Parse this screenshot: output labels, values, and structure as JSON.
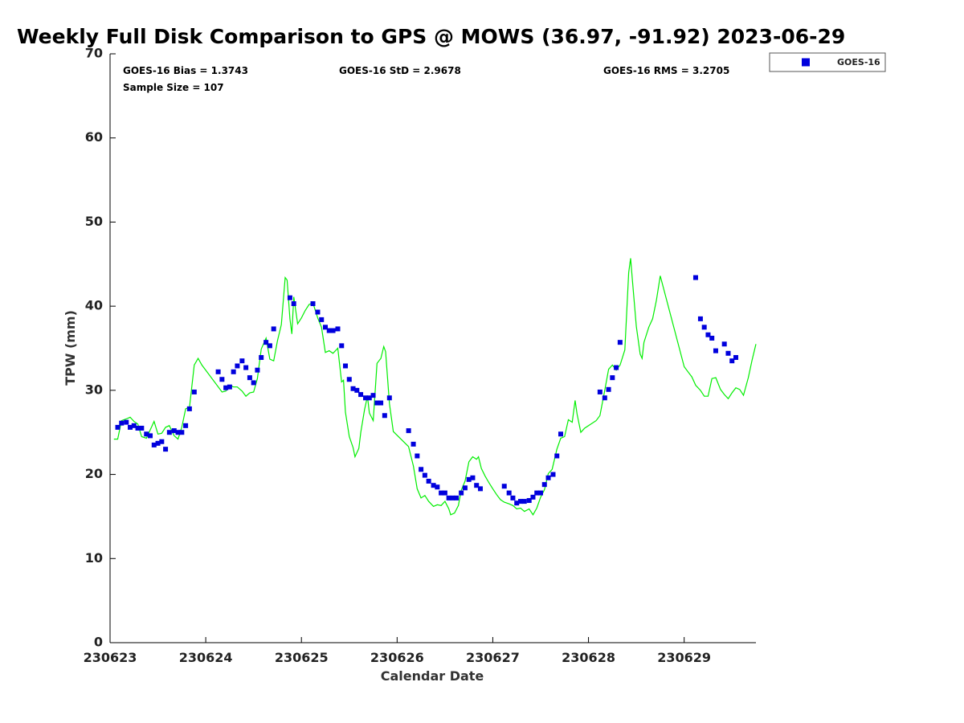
{
  "chart_data": {
    "type": "scatter",
    "title": "Weekly Full Disk Comparison to GPS @ MOWS (36.97, -91.92) 2023-06-29",
    "xlabel": "Calendar Date",
    "ylabel": "TPW (mm)",
    "xlim": [
      0,
      6.75
    ],
    "ylim": [
      0,
      70
    ],
    "y_ticks": [
      0,
      10,
      20,
      30,
      40,
      50,
      60,
      70
    ],
    "x_ticks": [
      {
        "value": 0,
        "label": "230623"
      },
      {
        "value": 1,
        "label": "230624"
      },
      {
        "value": 2,
        "label": "230625"
      },
      {
        "value": 3,
        "label": "230626"
      },
      {
        "value": 4,
        "label": "230627"
      },
      {
        "value": 5,
        "label": "230628"
      },
      {
        "value": 6,
        "label": "230629"
      }
    ],
    "legend": {
      "position": "top-right outside",
      "entries": [
        {
          "label": "GOES-16",
          "color": "#0000dd",
          "marker": "square"
        }
      ]
    },
    "stats": {
      "bias": "GOES-16 Bias = 1.3743",
      "std": "GOES-16 StD = 2.9678",
      "rms": "GOES-16 RMS = 3.2705",
      "sample": "Sample Size = 107"
    },
    "series": [
      {
        "name": "GOES-16",
        "kind": "scatter",
        "color": "#0000dd",
        "points": [
          [
            0.08,
            25.6
          ],
          [
            0.12,
            26.1
          ],
          [
            0.17,
            26.2
          ],
          [
            0.21,
            25.6
          ],
          [
            0.25,
            25.8
          ],
          [
            0.29,
            25.5
          ],
          [
            0.33,
            25.5
          ],
          [
            0.38,
            24.8
          ],
          [
            0.42,
            24.6
          ],
          [
            0.46,
            23.5
          ],
          [
            0.5,
            23.7
          ],
          [
            0.54,
            23.9
          ],
          [
            0.58,
            23.0
          ],
          [
            0.62,
            25.0
          ],
          [
            0.67,
            25.2
          ],
          [
            0.71,
            25.0
          ],
          [
            0.75,
            25.0
          ],
          [
            0.79,
            25.8
          ],
          [
            0.83,
            27.8
          ],
          [
            0.88,
            29.8
          ],
          [
            1.13,
            32.2
          ],
          [
            1.17,
            31.3
          ],
          [
            1.21,
            30.3
          ],
          [
            1.25,
            30.4
          ],
          [
            1.29,
            32.2
          ],
          [
            1.33,
            32.9
          ],
          [
            1.38,
            33.5
          ],
          [
            1.42,
            32.7
          ],
          [
            1.46,
            31.5
          ],
          [
            1.5,
            30.9
          ],
          [
            1.54,
            32.4
          ],
          [
            1.58,
            33.9
          ],
          [
            1.63,
            35.7
          ],
          [
            1.67,
            35.3
          ],
          [
            1.71,
            37.3
          ],
          [
            1.88,
            41.0
          ],
          [
            1.92,
            40.3
          ],
          [
            2.12,
            40.3
          ],
          [
            2.17,
            39.3
          ],
          [
            2.21,
            38.4
          ],
          [
            2.25,
            37.5
          ],
          [
            2.29,
            37.1
          ],
          [
            2.33,
            37.1
          ],
          [
            2.38,
            37.3
          ],
          [
            2.42,
            35.3
          ],
          [
            2.46,
            32.9
          ],
          [
            2.5,
            31.3
          ],
          [
            2.54,
            30.2
          ],
          [
            2.58,
            30.0
          ],
          [
            2.62,
            29.5
          ],
          [
            2.67,
            29.1
          ],
          [
            2.71,
            29.1
          ],
          [
            2.75,
            29.4
          ],
          [
            2.79,
            28.5
          ],
          [
            2.83,
            28.5
          ],
          [
            2.87,
            27.0
          ],
          [
            2.92,
            29.1
          ],
          [
            3.12,
            25.2
          ],
          [
            3.17,
            23.6
          ],
          [
            3.21,
            22.2
          ],
          [
            3.25,
            20.6
          ],
          [
            3.29,
            19.9
          ],
          [
            3.33,
            19.2
          ],
          [
            3.38,
            18.7
          ],
          [
            3.42,
            18.5
          ],
          [
            3.46,
            17.8
          ],
          [
            3.5,
            17.8
          ],
          [
            3.54,
            17.2
          ],
          [
            3.58,
            17.2
          ],
          [
            3.62,
            17.2
          ],
          [
            3.67,
            17.8
          ],
          [
            3.71,
            18.4
          ],
          [
            3.75,
            19.4
          ],
          [
            3.79,
            19.6
          ],
          [
            3.83,
            18.7
          ],
          [
            3.87,
            18.3
          ],
          [
            4.12,
            18.6
          ],
          [
            4.17,
            17.8
          ],
          [
            4.21,
            17.2
          ],
          [
            4.25,
            16.6
          ],
          [
            4.29,
            16.8
          ],
          [
            4.33,
            16.8
          ],
          [
            4.38,
            16.9
          ],
          [
            4.42,
            17.3
          ],
          [
            4.46,
            17.8
          ],
          [
            4.5,
            17.8
          ],
          [
            4.54,
            18.8
          ],
          [
            4.58,
            19.6
          ],
          [
            4.63,
            20.0
          ],
          [
            4.67,
            22.2
          ],
          [
            4.71,
            24.8
          ],
          [
            5.12,
            29.8
          ],
          [
            5.17,
            29.1
          ],
          [
            5.21,
            30.1
          ],
          [
            5.25,
            31.5
          ],
          [
            5.29,
            32.7
          ],
          [
            5.33,
            35.7
          ],
          [
            6.12,
            43.4
          ],
          [
            6.17,
            38.5
          ],
          [
            6.21,
            37.5
          ],
          [
            6.25,
            36.6
          ],
          [
            6.29,
            36.2
          ],
          [
            6.33,
            34.7
          ],
          [
            6.42,
            35.5
          ],
          [
            6.46,
            34.4
          ],
          [
            6.5,
            33.5
          ],
          [
            6.54,
            33.9
          ]
        ]
      },
      {
        "name": "GPS",
        "kind": "line",
        "color": "#00ee00",
        "points": [
          [
            0.04,
            24.2
          ],
          [
            0.08,
            24.2
          ],
          [
            0.12,
            26.4
          ],
          [
            0.17,
            26.6
          ],
          [
            0.21,
            26.8
          ],
          [
            0.25,
            26.3
          ],
          [
            0.29,
            26.0
          ],
          [
            0.33,
            24.5
          ],
          [
            0.38,
            24.3
          ],
          [
            0.42,
            25.3
          ],
          [
            0.46,
            26.3
          ],
          [
            0.5,
            24.8
          ],
          [
            0.54,
            24.9
          ],
          [
            0.58,
            25.6
          ],
          [
            0.62,
            25.8
          ],
          [
            0.67,
            24.6
          ],
          [
            0.71,
            24.2
          ],
          [
            0.75,
            25.6
          ],
          [
            0.79,
            27.8
          ],
          [
            0.83,
            28.0
          ],
          [
            0.88,
            33.0
          ],
          [
            0.92,
            33.8
          ],
          [
            0.96,
            33.0
          ],
          [
            1.17,
            29.8
          ],
          [
            1.21,
            29.9
          ],
          [
            1.25,
            30.6
          ],
          [
            1.29,
            30.4
          ],
          [
            1.33,
            30.4
          ],
          [
            1.38,
            29.9
          ],
          [
            1.42,
            29.3
          ],
          [
            1.46,
            29.7
          ],
          [
            1.5,
            29.8
          ],
          [
            1.54,
            31.4
          ],
          [
            1.58,
            34.9
          ],
          [
            1.63,
            36.2
          ],
          [
            1.67,
            33.7
          ],
          [
            1.71,
            33.5
          ],
          [
            1.75,
            35.9
          ],
          [
            1.79,
            37.8
          ],
          [
            1.83,
            43.4
          ],
          [
            1.85,
            43.1
          ],
          [
            1.88,
            38.5
          ],
          [
            1.9,
            36.7
          ],
          [
            1.92,
            41.1
          ],
          [
            1.96,
            37.9
          ],
          [
            2.0,
            38.6
          ],
          [
            2.04,
            39.5
          ],
          [
            2.08,
            40.2
          ],
          [
            2.12,
            40.4
          ],
          [
            2.17,
            38.6
          ],
          [
            2.21,
            37.5
          ],
          [
            2.25,
            34.5
          ],
          [
            2.29,
            34.7
          ],
          [
            2.33,
            34.4
          ],
          [
            2.38,
            35.0
          ],
          [
            2.42,
            31.0
          ],
          [
            2.44,
            31.2
          ],
          [
            2.46,
            27.4
          ],
          [
            2.5,
            24.5
          ],
          [
            2.54,
            23.2
          ],
          [
            2.56,
            22.1
          ],
          [
            2.6,
            23.1
          ],
          [
            2.62,
            25.0
          ],
          [
            2.66,
            27.7
          ],
          [
            2.69,
            29.3
          ],
          [
            2.71,
            27.3
          ],
          [
            2.75,
            26.4
          ],
          [
            2.79,
            33.2
          ],
          [
            2.83,
            33.8
          ],
          [
            2.86,
            35.2
          ],
          [
            2.88,
            34.6
          ],
          [
            2.92,
            28.4
          ],
          [
            2.96,
            25.1
          ],
          [
            3.12,
            23.3
          ],
          [
            3.17,
            21.0
          ],
          [
            3.21,
            18.3
          ],
          [
            3.25,
            17.2
          ],
          [
            3.29,
            17.5
          ],
          [
            3.33,
            16.8
          ],
          [
            3.38,
            16.2
          ],
          [
            3.42,
            16.4
          ],
          [
            3.46,
            16.3
          ],
          [
            3.5,
            16.8
          ],
          [
            3.54,
            15.9
          ],
          [
            3.56,
            15.2
          ],
          [
            3.6,
            15.4
          ],
          [
            3.64,
            16.3
          ],
          [
            3.67,
            18.1
          ],
          [
            3.71,
            19.2
          ],
          [
            3.75,
            21.5
          ],
          [
            3.79,
            22.1
          ],
          [
            3.83,
            21.8
          ],
          [
            3.85,
            22.1
          ],
          [
            3.88,
            20.7
          ],
          [
            3.92,
            19.8
          ],
          [
            3.96,
            19.0
          ],
          [
            4.0,
            18.3
          ],
          [
            4.04,
            17.6
          ],
          [
            4.08,
            17.0
          ],
          [
            4.12,
            16.7
          ],
          [
            4.17,
            16.5
          ],
          [
            4.21,
            16.3
          ],
          [
            4.25,
            15.9
          ],
          [
            4.29,
            16.0
          ],
          [
            4.33,
            15.6
          ],
          [
            4.38,
            15.9
          ],
          [
            4.42,
            15.2
          ],
          [
            4.46,
            16.0
          ],
          [
            4.5,
            17.3
          ],
          [
            4.54,
            18.2
          ],
          [
            4.58,
            20.1
          ],
          [
            4.62,
            20.6
          ],
          [
            4.67,
            23.0
          ],
          [
            4.71,
            24.3
          ],
          [
            4.75,
            24.5
          ],
          [
            4.79,
            26.5
          ],
          [
            4.83,
            26.2
          ],
          [
            4.86,
            28.8
          ],
          [
            4.88,
            27.2
          ],
          [
            4.92,
            25.0
          ],
          [
            4.96,
            25.5
          ],
          [
            5.08,
            26.4
          ],
          [
            5.12,
            27.0
          ],
          [
            5.17,
            30.0
          ],
          [
            5.21,
            32.5
          ],
          [
            5.25,
            33.0
          ],
          [
            5.29,
            32.4
          ],
          [
            5.33,
            33.0
          ],
          [
            5.38,
            34.8
          ],
          [
            5.42,
            44.0
          ],
          [
            5.44,
            45.7
          ],
          [
            5.46,
            43.0
          ],
          [
            5.5,
            37.6
          ],
          [
            5.54,
            34.3
          ],
          [
            5.56,
            33.8
          ],
          [
            5.58,
            35.7
          ],
          [
            5.63,
            37.5
          ],
          [
            5.67,
            38.5
          ],
          [
            5.71,
            40.7
          ],
          [
            5.75,
            43.6
          ],
          [
            6.0,
            32.8
          ],
          [
            6.04,
            32.2
          ],
          [
            6.08,
            31.6
          ],
          [
            6.12,
            30.6
          ],
          [
            6.17,
            30.0
          ],
          [
            6.21,
            29.3
          ],
          [
            6.25,
            29.3
          ],
          [
            6.29,
            31.4
          ],
          [
            6.33,
            31.5
          ],
          [
            6.38,
            30.1
          ],
          [
            6.42,
            29.5
          ],
          [
            6.46,
            29.0
          ],
          [
            6.5,
            29.7
          ],
          [
            6.54,
            30.3
          ],
          [
            6.58,
            30.1
          ],
          [
            6.62,
            29.4
          ],
          [
            6.67,
            31.5
          ],
          [
            6.71,
            33.6
          ],
          [
            6.75,
            35.5
          ]
        ]
      }
    ]
  }
}
